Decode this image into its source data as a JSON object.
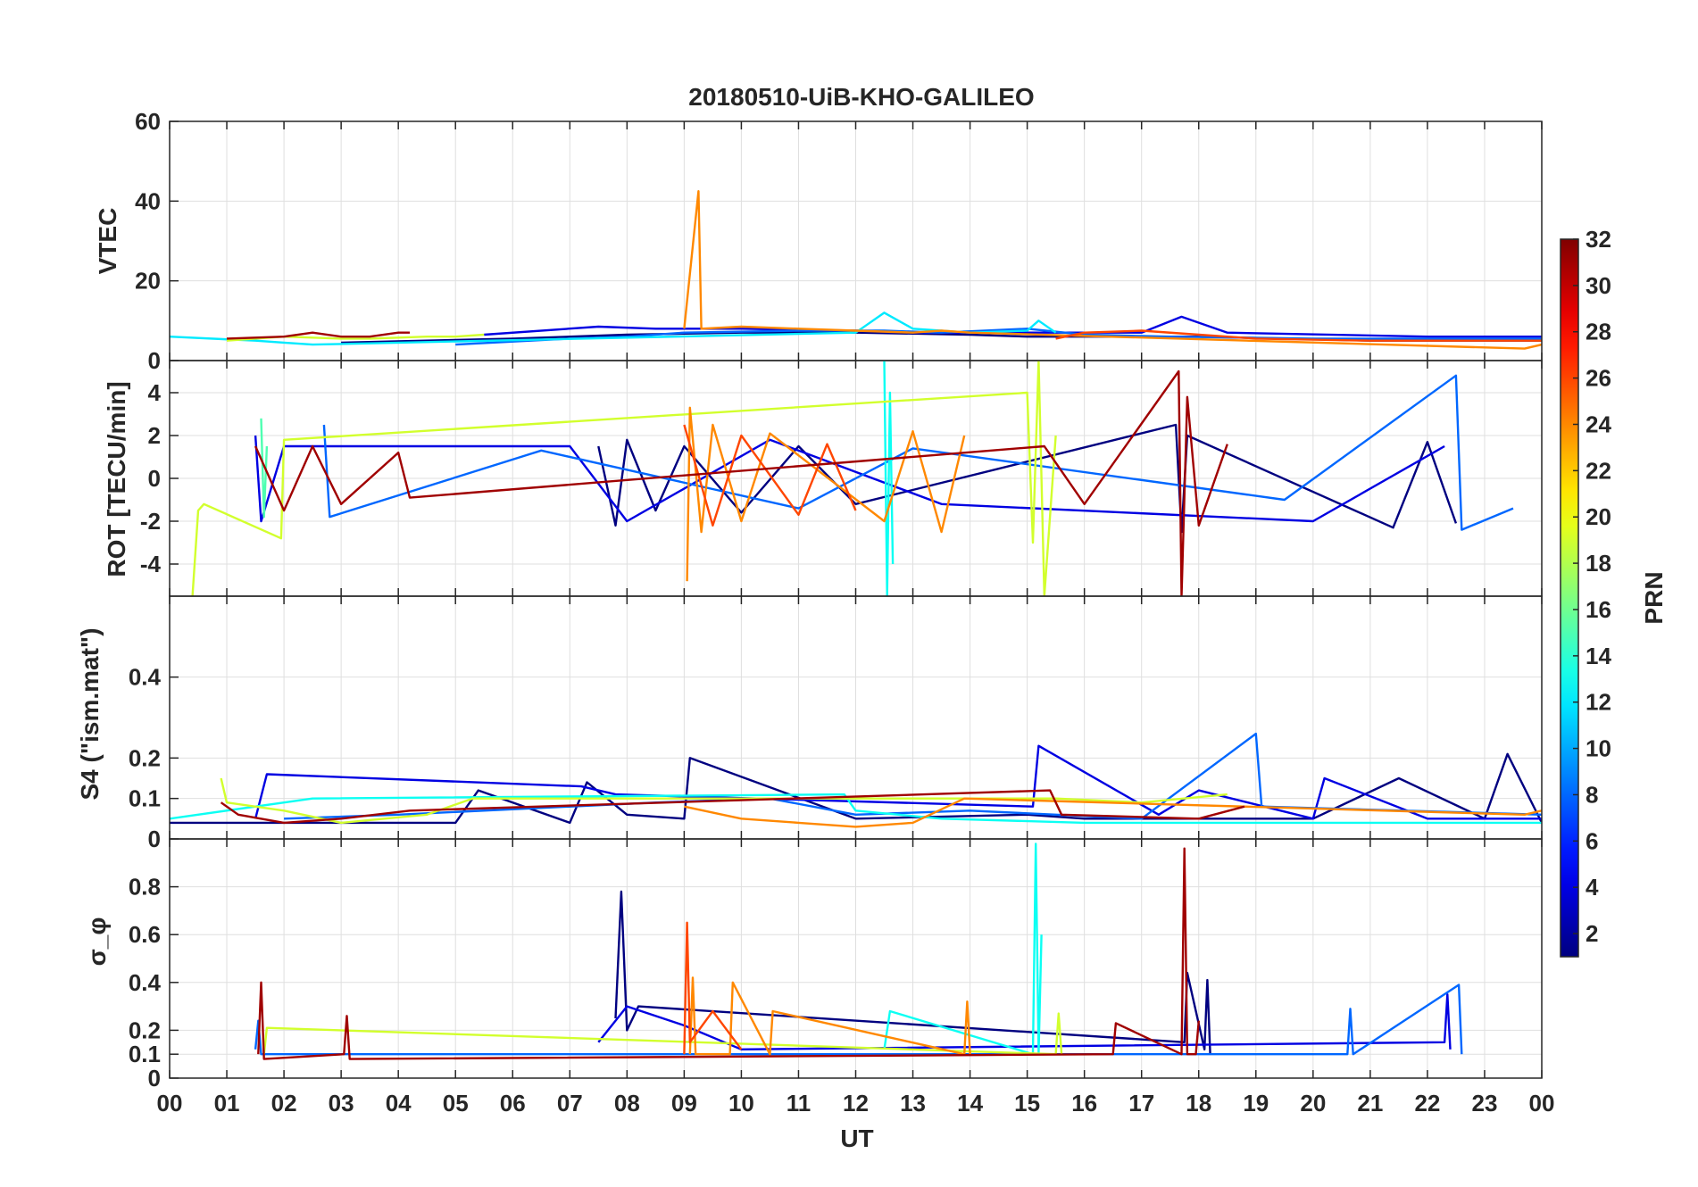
{
  "chart_data": [
    {
      "type": "line",
      "title": "20180510-UiB-KHO-GALILEO",
      "ylabel": "VTEC",
      "ylim": [
        0,
        60
      ],
      "yticks": [
        "0",
        "20",
        "40",
        "60"
      ],
      "series": [
        {
          "name": "PRN 1",
          "prn": 1,
          "x": [
            3.0,
            6.0,
            8.0,
            10.0,
            12.0,
            14.0,
            15.0,
            18.0,
            21.0,
            24.0
          ],
          "values": [
            4.5,
            5.5,
            6.5,
            7,
            7,
            6.5,
            6,
            6,
            5,
            5
          ]
        },
        {
          "name": "PRN 4",
          "prn": 4,
          "x": [
            5.5,
            7.5,
            8.5,
            10.0,
            12.0,
            13.0,
            15.0,
            17.0,
            17.7,
            18.5,
            22.0,
            24.0
          ],
          "values": [
            6.5,
            8.5,
            8,
            8,
            7.5,
            7,
            7,
            7,
            11,
            7,
            6,
            6
          ]
        },
        {
          "name": "PRN 8",
          "prn": 8,
          "x": [
            5.0,
            7.0,
            8.0,
            9.0,
            11.0,
            12.5,
            13.5,
            15.0,
            16.0,
            17.5,
            20.0,
            24.0
          ],
          "values": [
            4,
            5.5,
            6,
            7,
            7.5,
            7.5,
            7,
            8,
            6.5,
            6,
            5.5,
            5.5
          ]
        },
        {
          "name": "PRN 12",
          "prn": 12,
          "x": [
            0.0,
            1.5,
            2.0,
            2.5,
            12.0,
            12.5,
            13.0,
            14.0,
            15.0,
            15.2,
            15.5
          ],
          "values": [
            6,
            5,
            4.5,
            4,
            7,
            12,
            8,
            7,
            7.5,
            10,
            7
          ]
        },
        {
          "name": "PRN 19",
          "prn": 19,
          "x": [
            1.0,
            1.5,
            2.0,
            3.0,
            3.5,
            4.5,
            5.0,
            5.5
          ],
          "values": [
            5,
            5.5,
            6,
            5.5,
            5.5,
            6,
            6,
            6.5
          ]
        },
        {
          "name": "PRN 24",
          "prn": 24,
          "x": [
            9.0,
            9.25,
            9.3,
            10.0,
            11.0,
            12.0,
            13.0,
            13.5,
            14.0,
            23.7,
            24.0
          ],
          "values": [
            8,
            42.5,
            8,
            8.5,
            8,
            7.5,
            7,
            7.5,
            7,
            3,
            4
          ]
        },
        {
          "name": "PRN 26",
          "prn": 26,
          "x": [
            15.5,
            16.0,
            17.0,
            18.0,
            19.0,
            21.0,
            24.0
          ],
          "values": [
            5.5,
            7,
            7.5,
            6.5,
            5.5,
            5,
            5
          ]
        },
        {
          "name": "PRN 31",
          "prn": 31,
          "x": [
            1.0,
            2.0,
            2.5,
            3.0,
            3.5,
            4.0,
            4.2
          ],
          "values": [
            5.5,
            6,
            7,
            6,
            6,
            7,
            7
          ]
        }
      ]
    },
    {
      "type": "line",
      "ylabel": "ROT [TECU/min]",
      "ylim": [
        -5.5,
        5.5
      ],
      "yticks": [
        "-4",
        "-2",
        "0",
        "2",
        "4"
      ],
      "series": [
        {
          "name": "PRN 1",
          "prn": 1,
          "x": [
            7.5,
            7.8,
            8.0,
            8.5,
            9.0,
            10.0,
            11.0,
            12.0,
            17.6,
            17.7,
            17.8,
            21.4,
            22.0,
            22.5
          ],
          "values": [
            1.5,
            -2.2,
            1.8,
            -1.5,
            1.5,
            -1.6,
            1.5,
            -1.2,
            2.5,
            -2.5,
            2.0,
            -2.3,
            1.7,
            -2.1
          ]
        },
        {
          "name": "PRN 4",
          "prn": 4,
          "x": [
            1.5,
            1.6,
            2.0,
            7.0,
            8.0,
            10.5,
            13.5,
            20.0,
            22.3
          ],
          "values": [
            2.0,
            -2.0,
            1.5,
            1.5,
            -2.0,
            1.8,
            -1.2,
            -2.0,
            1.5
          ]
        },
        {
          "name": "PRN 8",
          "prn": 8,
          "x": [
            2.7,
            2.8,
            6.5,
            11.0,
            13.0,
            19.5,
            22.5,
            22.6,
            23.5
          ],
          "values": [
            2.5,
            -1.8,
            1.3,
            -1.4,
            1.4,
            -1.0,
            4.8,
            -2.4,
            -1.4
          ]
        },
        {
          "name": "PRN 13",
          "prn": 13,
          "x": [
            12.5,
            12.55,
            12.6,
            12.65
          ],
          "values": [
            5.5,
            -5.5,
            4.0,
            -4.0
          ]
        },
        {
          "name": "PRN 15",
          "prn": 15,
          "x": [
            1.6,
            1.65,
            1.7
          ],
          "values": [
            2.8,
            -1.8,
            1.5
          ]
        },
        {
          "name": "PRN 19",
          "prn": 19,
          "x": [
            0.4,
            0.5,
            0.6,
            1.95,
            2.0,
            15.0,
            15.1,
            15.2,
            15.3,
            15.5
          ],
          "values": [
            -5.5,
            -1.5,
            -1.2,
            -2.8,
            1.8,
            4.0,
            -3.0,
            5.5,
            -5.5,
            2.0
          ]
        },
        {
          "name": "PRN 24",
          "prn": 24,
          "x": [
            9.05,
            9.1,
            9.3,
            9.5,
            10.0,
            10.5,
            12.5,
            13.0,
            13.5,
            13.9
          ],
          "values": [
            -4.8,
            3.3,
            -2.5,
            2.5,
            -2.0,
            2.1,
            -2.0,
            2.2,
            -2.5,
            2.0
          ]
        },
        {
          "name": "PRN 26",
          "prn": 26,
          "x": [
            9.0,
            9.5,
            10.0,
            11.0,
            11.5,
            12.0
          ],
          "values": [
            2.5,
            -2.2,
            2.0,
            -1.7,
            1.6,
            -1.5
          ]
        },
        {
          "name": "PRN 31",
          "prn": 31,
          "x": [
            1.5,
            2.0,
            2.5,
            3.0,
            4.0,
            4.2,
            15.3,
            16.0,
            17.65,
            17.7,
            17.8,
            18.0,
            18.5
          ],
          "values": [
            1.5,
            -1.5,
            1.5,
            -1.2,
            1.2,
            -0.9,
            1.5,
            -1.2,
            5.0,
            -5.5,
            3.8,
            -2.2,
            1.6
          ]
        }
      ]
    },
    {
      "type": "line",
      "ylabel": "S4 (\"ism.mat\")",
      "ylim": [
        0,
        0.6
      ],
      "yticks": [
        "0",
        "0.1",
        "0.2",
        "0.4"
      ],
      "series": [
        {
          "name": "PRN 1",
          "prn": 1,
          "x": [
            0.0,
            5.0,
            5.4,
            7.0,
            7.3,
            8.0,
            9.0,
            9.1,
            12.0,
            15.0,
            16.0,
            20.0,
            21.5,
            23.0,
            23.4,
            24.0
          ],
          "values": [
            0.04,
            0.04,
            0.12,
            0.04,
            0.14,
            0.06,
            0.05,
            0.2,
            0.05,
            0.06,
            0.05,
            0.05,
            0.15,
            0.05,
            0.21,
            0.04
          ]
        },
        {
          "name": "PRN 4",
          "prn": 4,
          "x": [
            1.5,
            1.7,
            7.2,
            7.8,
            15.1,
            15.2,
            17.3,
            18.0,
            20.0,
            20.2,
            22.0,
            24.0
          ],
          "values": [
            0.05,
            0.16,
            0.13,
            0.11,
            0.08,
            0.23,
            0.06,
            0.12,
            0.05,
            0.15,
            0.05,
            0.05
          ]
        },
        {
          "name": "PRN 8",
          "prn": 8,
          "x": [
            2.0,
            4.0,
            8.5,
            10.5,
            12.0,
            14.0,
            17.0,
            19.0,
            19.1,
            24.0
          ],
          "values": [
            0.05,
            0.06,
            0.09,
            0.1,
            0.06,
            0.07,
            0.05,
            0.26,
            0.08,
            0.06
          ]
        },
        {
          "name": "PRN 13",
          "prn": 13,
          "x": [
            0.0,
            2.5,
            11.8,
            12.0,
            13.5,
            16.0,
            24.0
          ],
          "values": [
            0.05,
            0.1,
            0.11,
            0.07,
            0.05,
            0.04,
            0.04
          ]
        },
        {
          "name": "PRN 19",
          "prn": 19,
          "x": [
            0.9,
            1.0,
            2.0,
            3.0,
            4.5,
            5.3,
            15.5,
            17.0,
            18.5
          ],
          "values": [
            0.15,
            0.09,
            0.07,
            0.04,
            0.06,
            0.1,
            0.1,
            0.09,
            0.11
          ]
        },
        {
          "name": "PRN 24",
          "prn": 24,
          "x": [
            9.0,
            10.0,
            11.0,
            12.0,
            13.0,
            13.9,
            23.7,
            24.0
          ],
          "values": [
            0.08,
            0.05,
            0.04,
            0.03,
            0.04,
            0.1,
            0.06,
            0.07
          ]
        },
        {
          "name": "PRN 31",
          "prn": 31,
          "x": [
            0.9,
            1.2,
            2.0,
            3.0,
            4.2,
            15.4,
            15.6,
            18.0,
            18.8
          ],
          "values": [
            0.09,
            0.06,
            0.04,
            0.05,
            0.07,
            0.12,
            0.06,
            0.05,
            0.08
          ]
        }
      ]
    },
    {
      "type": "line",
      "ylabel": "σ_φ",
      "ylim": [
        0,
        1
      ],
      "yticks": [
        "0",
        "0.1",
        "0.2",
        "0.4",
        "0.6",
        "0.8"
      ],
      "series": [
        {
          "name": "PRN 1",
          "prn": 1,
          "x": [
            7.8,
            7.9,
            8.0,
            8.2,
            17.75,
            17.8,
            18.1,
            18.15,
            18.2
          ],
          "values": [
            0.25,
            0.78,
            0.2,
            0.3,
            0.15,
            0.44,
            0.12,
            0.41,
            0.1
          ]
        },
        {
          "name": "PRN 4",
          "prn": 4,
          "x": [
            7.5,
            8.0,
            9.0,
            10.0,
            22.3,
            22.35,
            22.4
          ],
          "values": [
            0.15,
            0.3,
            0.22,
            0.12,
            0.15,
            0.35,
            0.12
          ]
        },
        {
          "name": "PRN 8",
          "prn": 8,
          "x": [
            1.5,
            1.55,
            1.6,
            20.6,
            20.65,
            20.7,
            22.55,
            22.6
          ],
          "values": [
            0.12,
            0.24,
            0.1,
            0.1,
            0.29,
            0.1,
            0.39,
            0.1
          ]
        },
        {
          "name": "PRN 13",
          "prn": 13,
          "x": [
            12.5,
            12.6,
            15.1,
            15.15,
            15.2,
            15.25
          ],
          "values": [
            0.12,
            0.28,
            0.1,
            0.98,
            0.1,
            0.6
          ]
        },
        {
          "name": "PRN 19",
          "prn": 19,
          "x": [
            1.65,
            1.7,
            15.5,
            15.55,
            15.6
          ],
          "values": [
            0.1,
            0.21,
            0.1,
            0.27,
            0.1
          ]
        },
        {
          "name": "PRN 24",
          "prn": 24,
          "x": [
            9.1,
            9.15,
            9.2,
            9.8,
            9.85,
            10.5,
            10.55,
            13.9,
            13.95,
            14.0
          ],
          "values": [
            0.1,
            0.42,
            0.1,
            0.1,
            0.4,
            0.1,
            0.28,
            0.1,
            0.32,
            0.1
          ]
        },
        {
          "name": "PRN 26",
          "prn": 26,
          "x": [
            9.0,
            9.05,
            9.1,
            9.5,
            10.0
          ],
          "values": [
            0.1,
            0.65,
            0.15,
            0.28,
            0.12
          ]
        },
        {
          "name": "PRN 31",
          "prn": 31,
          "x": [
            1.55,
            1.6,
            1.65,
            3.05,
            3.1,
            3.15,
            16.5,
            16.55,
            17.7,
            17.75,
            17.8,
            17.95,
            18.0
          ],
          "values": [
            0.1,
            0.4,
            0.08,
            0.1,
            0.26,
            0.08,
            0.1,
            0.23,
            0.1,
            0.96,
            0.1,
            0.1,
            0.24
          ]
        }
      ]
    }
  ],
  "x_axis": {
    "xlabel": "UT",
    "xlim": [
      0,
      24
    ],
    "ticks": [
      "00",
      "01",
      "02",
      "03",
      "04",
      "05",
      "06",
      "07",
      "08",
      "09",
      "10",
      "11",
      "12",
      "13",
      "14",
      "15",
      "16",
      "17",
      "18",
      "19",
      "20",
      "21",
      "22",
      "23",
      "00"
    ]
  },
  "colorbar": {
    "label": "PRN",
    "range": [
      1,
      32
    ],
    "ticks": [
      "2",
      "4",
      "6",
      "8",
      "10",
      "12",
      "14",
      "16",
      "18",
      "20",
      "22",
      "24",
      "26",
      "28",
      "30",
      "32"
    ],
    "colormap": "jet"
  }
}
